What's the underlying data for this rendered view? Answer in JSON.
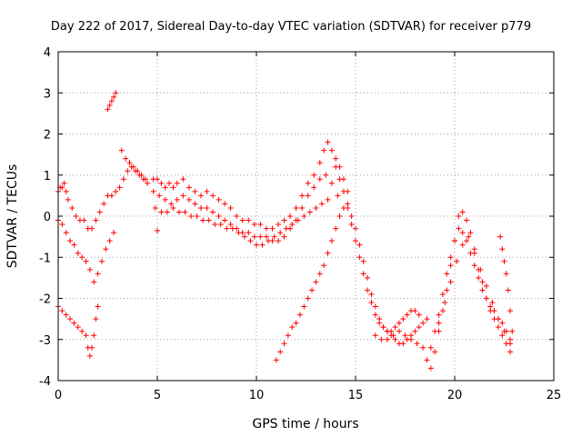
{
  "chart_data": {
    "type": "scatter",
    "title": "Day 222 of 2017, Sidereal Day-to-day VTEC variation (SDTVAR) for receiver p779",
    "xlabel": "GPS time / hours",
    "ylabel": "SDTVAR / TECUs",
    "xlim": [
      0,
      25
    ],
    "ylim": [
      -4,
      4
    ],
    "xticks": [
      "0",
      "5",
      "10",
      "15",
      "20",
      "25"
    ],
    "yticks": [
      "-4",
      "-3",
      "-2",
      "-1",
      "0",
      "1",
      "2",
      "3",
      "4"
    ],
    "grid": true,
    "marker": "+",
    "series": [
      {
        "name": "p779",
        "color": "#ff0000",
        "x": [
          0.0,
          0.1,
          0.2,
          0.3,
          0.4,
          0.5,
          0.7,
          0.9,
          1.1,
          1.3,
          1.5,
          1.7,
          1.9,
          2.1,
          2.3,
          2.5,
          2.7,
          2.9,
          3.1,
          3.3,
          3.5,
          3.7,
          3.9,
          4.1,
          4.3,
          4.5,
          0.0,
          0.2,
          0.4,
          0.6,
          0.8,
          1.0,
          1.2,
          1.4,
          1.6,
          1.8,
          2.0,
          2.2,
          2.4,
          2.6,
          2.8,
          0.0,
          0.2,
          0.4,
          0.6,
          0.8,
          1.0,
          1.2,
          1.4,
          1.5,
          1.6,
          1.7,
          1.8,
          1.9,
          2.0,
          2.5,
          2.6,
          2.7,
          2.8,
          2.9,
          3.2,
          3.4,
          3.6,
          3.8,
          4.0,
          4.2,
          4.4,
          4.8,
          5.0,
          5.2,
          5.4,
          5.6,
          5.8,
          6.0,
          6.3,
          6.6,
          6.9,
          7.2,
          7.5,
          7.8,
          8.1,
          8.4,
          8.7,
          9.0,
          9.3,
          9.6,
          9.9,
          10.2,
          10.5,
          10.8,
          11.1,
          11.4,
          11.7,
          12.0,
          12.3,
          12.6,
          12.9,
          13.2,
          13.4,
          13.6,
          13.8,
          14.0,
          14.2,
          14.4,
          14.6,
          4.8,
          5.1,
          5.4,
          5.7,
          6.0,
          6.3,
          6.6,
          6.9,
          7.2,
          7.5,
          7.8,
          8.1,
          8.4,
          8.7,
          9.0,
          9.3,
          9.6,
          9.9,
          10.2,
          10.5,
          10.8,
          11.1,
          11.4,
          11.7,
          12.0,
          12.3,
          12.6,
          12.9,
          13.2,
          13.5,
          13.8,
          14.1,
          14.4,
          4.9,
          5.2,
          5.5,
          5.8,
          6.1,
          6.4,
          6.7,
          7.0,
          7.3,
          7.6,
          7.9,
          8.2,
          8.5,
          8.8,
          9.1,
          9.4,
          9.7,
          10.0,
          10.3,
          10.6,
          10.9,
          11.2,
          11.5,
          11.8,
          12.1,
          12.4,
          12.7,
          13.0,
          13.3,
          13.6,
          5.0,
          11.0,
          11.2,
          11.4,
          11.6,
          11.8,
          12.0,
          12.2,
          12.4,
          12.6,
          12.8,
          13.0,
          13.2,
          13.4,
          13.6,
          13.8,
          14.0,
          14.2,
          14.0,
          14.2,
          14.4,
          14.6,
          14.8,
          15.0,
          15.2,
          15.4,
          15.6,
          15.8,
          16.0,
          16.2,
          16.4,
          16.6,
          16.8,
          17.0,
          17.2,
          17.4,
          17.6,
          17.8,
          18.0,
          18.2,
          14.6,
          14.8,
          15.0,
          15.2,
          15.4,
          15.6,
          15.8,
          16.0,
          16.2,
          16.4,
          16.6,
          16.8,
          17.0,
          17.2,
          17.4,
          17.6,
          17.8,
          18.0,
          18.2,
          18.4,
          18.6,
          16.0,
          16.3,
          16.6,
          16.9,
          17.2,
          17.5,
          17.8,
          18.1,
          18.4,
          18.6,
          18.8,
          19.0,
          19.2,
          19.4,
          19.6,
          19.8,
          20.0,
          20.2,
          20.4,
          20.6,
          20.8,
          21.0,
          21.2,
          21.4,
          21.6,
          21.8,
          22.0,
          22.2,
          22.4,
          22.6,
          22.8,
          18.8,
          19.0,
          19.2,
          19.4,
          19.6,
          19.8,
          20.0,
          20.2,
          20.4,
          20.6,
          20.8,
          21.0,
          21.2,
          21.4,
          21.6,
          21.8,
          22.0,
          22.2,
          22.4,
          22.6,
          22.8,
          19.2,
          19.5,
          19.8,
          20.1,
          20.4,
          20.7,
          21.0,
          21.3,
          21.6,
          21.9,
          22.2,
          22.5,
          22.8,
          22.3,
          22.4,
          22.5,
          22.6,
          22.7,
          22.8,
          22.9
        ],
        "y": [
          0.6,
          0.7,
          0.7,
          0.8,
          0.6,
          0.4,
          0.2,
          0.0,
          -0.1,
          -0.1,
          -0.3,
          -0.3,
          -0.1,
          0.1,
          0.3,
          0.5,
          0.5,
          0.6,
          0.7,
          0.9,
          1.1,
          1.2,
          1.1,
          1.0,
          0.9,
          0.8,
          -0.1,
          -0.2,
          -0.4,
          -0.6,
          -0.7,
          -0.9,
          -1.0,
          -1.1,
          -1.3,
          -1.6,
          -1.4,
          -1.1,
          -0.8,
          -0.6,
          -0.4,
          -2.2,
          -2.3,
          -2.4,
          -2.5,
          -2.6,
          -2.7,
          -2.8,
          -2.9,
          -3.2,
          -3.4,
          -3.2,
          -2.9,
          -2.5,
          -2.2,
          2.6,
          2.7,
          2.8,
          2.9,
          3.0,
          1.6,
          1.4,
          1.3,
          1.2,
          1.1,
          1.0,
          0.9,
          0.9,
          0.9,
          0.8,
          0.7,
          0.8,
          0.7,
          0.8,
          0.9,
          0.7,
          0.6,
          0.5,
          0.6,
          0.5,
          0.4,
          0.3,
          0.2,
          0.0,
          -0.1,
          -0.1,
          -0.2,
          -0.2,
          -0.3,
          -0.3,
          -0.2,
          -0.1,
          0.0,
          0.2,
          0.5,
          0.8,
          1.0,
          1.3,
          1.6,
          1.8,
          1.6,
          1.4,
          1.2,
          0.9,
          0.6,
          0.6,
          0.5,
          0.4,
          0.3,
          0.4,
          0.5,
          0.4,
          0.3,
          0.2,
          0.2,
          0.1,
          0.0,
          -0.1,
          -0.2,
          -0.3,
          -0.4,
          -0.4,
          -0.5,
          -0.5,
          -0.5,
          -0.6,
          -0.6,
          -0.5,
          -0.3,
          -0.1,
          0.2,
          0.5,
          0.7,
          0.9,
          1.0,
          0.8,
          0.5,
          0.2,
          0.2,
          0.1,
          0.1,
          0.2,
          0.1,
          0.1,
          0.0,
          0.0,
          -0.1,
          -0.1,
          -0.2,
          -0.2,
          -0.3,
          -0.3,
          -0.4,
          -0.5,
          -0.6,
          -0.7,
          -0.7,
          -0.6,
          -0.5,
          -0.4,
          -0.3,
          -0.2,
          -0.1,
          0.0,
          0.1,
          0.2,
          0.3,
          0.4,
          -0.35,
          -3.5,
          -3.3,
          -3.1,
          -2.9,
          -2.7,
          -2.6,
          -2.4,
          -2.2,
          -2.0,
          -1.8,
          -1.6,
          -1.4,
          -1.2,
          -0.9,
          -0.6,
          -0.3,
          0.0,
          1.2,
          0.9,
          0.6,
          0.2,
          -0.2,
          -0.6,
          -1.0,
          -1.4,
          -1.8,
          -2.1,
          -2.4,
          -2.6,
          -2.7,
          -2.8,
          -2.8,
          -2.7,
          -2.6,
          -2.5,
          -2.4,
          -2.3,
          -2.3,
          -2.4,
          0.3,
          0.0,
          -0.3,
          -0.7,
          -1.1,
          -1.5,
          -1.9,
          -2.2,
          -2.5,
          -2.7,
          -2.8,
          -2.9,
          -3.0,
          -3.1,
          -3.1,
          -3.0,
          -2.9,
          -2.8,
          -2.7,
          -2.6,
          -2.5,
          -2.9,
          -3.0,
          -3.0,
          -2.9,
          -2.8,
          -2.9,
          -3.0,
          -3.1,
          -3.2,
          -3.5,
          -3.7,
          -3.3,
          -2.8,
          -2.3,
          -1.8,
          -1.2,
          -0.6,
          0.0,
          0.1,
          -0.1,
          -0.4,
          -0.8,
          -1.3,
          -1.6,
          -2.0,
          -2.3,
          -2.5,
          -2.7,
          -2.9,
          -3.1,
          -3.3,
          -3.2,
          -2.8,
          -2.4,
          -1.9,
          -1.4,
          -1.0,
          -0.6,
          -0.3,
          -0.4,
          -0.6,
          -0.9,
          -1.2,
          -1.5,
          -1.8,
          -2.0,
          -2.2,
          -2.3,
          -2.5,
          -2.6,
          -2.8,
          -3.0,
          -2.6,
          -2.1,
          -1.6,
          -1.1,
          -0.7,
          -0.5,
          -0.9,
          -1.3,
          -1.7,
          -2.1,
          -2.5,
          -2.8,
          -3.1,
          -0.5,
          -0.8,
          -1.1,
          -1.4,
          -1.8,
          -2.3,
          -2.8
        ]
      }
    ]
  }
}
